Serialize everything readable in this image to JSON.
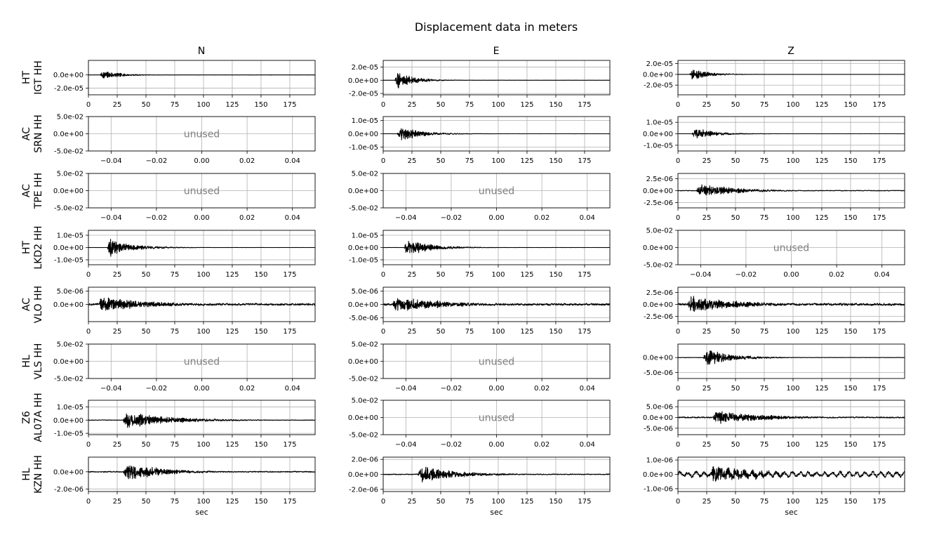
{
  "figure": {
    "title": "Displacement data in meters",
    "columns": [
      "N",
      "E",
      "Z"
    ],
    "xlabel": "sec"
  },
  "chart_data": {
    "type": "line",
    "title": "Displacement data in meters",
    "xlabel": "sec",
    "unused_label": "unused",
    "grid": true,
    "time_ticks": [
      "0",
      "25",
      "50",
      "75",
      "100",
      "125",
      "150",
      "175"
    ],
    "time_xlim": [
      0,
      197
    ],
    "unused_xticks": [
      "−0.04",
      "−0.02",
      "0.00",
      "0.02",
      "0.04"
    ],
    "unused_yticks": [
      "5.0e-02",
      "0.0e+00",
      "-5.0e-02"
    ],
    "rows": [
      {
        "network": "HT",
        "station": "IGT HH",
        "panels": [
          {
            "component": "N",
            "used": true,
            "onset": 10,
            "peak": 1.6e-05,
            "decay": 14,
            "ylim": [
              -3e-05,
              2.2e-05
            ],
            "yticks": [
              {
                "v": 0,
                "label": "0.0e+00"
              },
              {
                "v": -2e-05,
                "label": "-2.0e-05"
              }
            ],
            "noise": 0.004
          },
          {
            "component": "E",
            "used": true,
            "onset": 10,
            "peak": 3e-05,
            "decay": 14,
            "ylim": [
              -2.2e-05,
              3e-05
            ],
            "yticks": [
              {
                "v": 2e-05,
                "label": "2.0e-05"
              },
              {
                "v": 0,
                "label": "0.0e+00"
              },
              {
                "v": -2e-05,
                "label": "-2.0e-05"
              }
            ],
            "noise": 0.004
          },
          {
            "component": "Z",
            "used": true,
            "onset": 10,
            "peak": 2.5e-05,
            "decay": 14,
            "ylim": [
              -3.8e-05,
              2.6e-05
            ],
            "yticks": [
              {
                "v": 2e-05,
                "label": "2.0e-05"
              },
              {
                "v": 0,
                "label": "0.0e+00"
              },
              {
                "v": -2e-05,
                "label": "-2.0e-05"
              }
            ],
            "noise": 0.004
          }
        ]
      },
      {
        "network": "AC",
        "station": "SRN HH",
        "panels": [
          {
            "component": "N",
            "used": false
          },
          {
            "component": "E",
            "used": true,
            "onset": 12,
            "peak": 1.2e-05,
            "decay": 18,
            "ylim": [
              -1.3e-05,
              1.3e-05
            ],
            "yticks": [
              {
                "v": 1e-05,
                "label": "1.0e-05"
              },
              {
                "v": 0,
                "label": "0.0e+00"
              },
              {
                "v": -1e-05,
                "label": "-1.0e-05"
              }
            ],
            "noise": 0.006
          },
          {
            "component": "Z",
            "used": true,
            "onset": 12,
            "peak": 1.2e-05,
            "decay": 16,
            "ylim": [
              -1.5e-05,
              1.5e-05
            ],
            "yticks": [
              {
                "v": 1e-05,
                "label": "1.0e-05"
              },
              {
                "v": 0,
                "label": "0.0e+00"
              },
              {
                "v": -1e-05,
                "label": "-1.0e-05"
              }
            ],
            "noise": 0.006
          }
        ]
      },
      {
        "network": "AC",
        "station": "TPE HH",
        "panels": [
          {
            "component": "N",
            "used": false
          },
          {
            "component": "E",
            "used": false
          },
          {
            "component": "Z",
            "used": true,
            "onset": 16,
            "peak": 3.2e-06,
            "decay": 28,
            "ylim": [
              -3.6e-06,
              3.6e-06
            ],
            "yticks": [
              {
                "v": 2.5e-06,
                "label": "2.5e-06"
              },
              {
                "v": 0,
                "label": "0.0e+00"
              },
              {
                "v": -2.5e-06,
                "label": "-2.5e-06"
              }
            ],
            "noise": 0.04
          }
        ]
      },
      {
        "network": "HT",
        "station": "LKD2 HH",
        "panels": [
          {
            "component": "N",
            "used": true,
            "onset": 16,
            "peak": 1.4e-05,
            "decay": 20,
            "ylim": [
              -1.4e-05,
              1.4e-05
            ],
            "yticks": [
              {
                "v": 1e-05,
                "label": "1.0e-05"
              },
              {
                "v": 0,
                "label": "0.0e+00"
              },
              {
                "v": -1e-05,
                "label": "-1.0e-05"
              }
            ],
            "noise": 0.008
          },
          {
            "component": "E",
            "used": true,
            "onset": 18,
            "peak": 1.4e-05,
            "decay": 20,
            "ylim": [
              -1.4e-05,
              1.4e-05
            ],
            "yticks": [
              {
                "v": 1e-05,
                "label": "1.0e-05"
              },
              {
                "v": 0,
                "label": "0.0e+00"
              },
              {
                "v": -1e-05,
                "label": "-1.0e-05"
              }
            ],
            "noise": 0.008
          },
          {
            "component": "Z",
            "used": false
          }
        ]
      },
      {
        "network": "AC",
        "station": "VLO HH",
        "panels": [
          {
            "component": "N",
            "used": true,
            "onset": 8,
            "peak": 6e-06,
            "decay": 40,
            "ylim": [
              -6.5e-06,
              6.5e-06
            ],
            "yticks": [
              {
                "v": 5e-06,
                "label": "5.0e-06"
              },
              {
                "v": 0,
                "label": "0.0e+00"
              }
            ],
            "noise": 0.12
          },
          {
            "component": "E",
            "used": true,
            "onset": 8,
            "peak": 6e-06,
            "decay": 40,
            "ylim": [
              -6.5e-06,
              6.5e-06
            ],
            "yticks": [
              {
                "v": 5e-06,
                "label": "5.0e-06"
              },
              {
                "v": 0,
                "label": "0.0e+00"
              },
              {
                "v": -5e-06,
                "label": "-5.0e-06"
              }
            ],
            "noise": 0.12
          },
          {
            "component": "Z",
            "used": true,
            "onset": 8,
            "peak": 3.6e-06,
            "decay": 40,
            "ylim": [
              -3.6e-06,
              3.6e-06
            ],
            "yticks": [
              {
                "v": 2.5e-06,
                "label": "2.5e-06"
              },
              {
                "v": 0,
                "label": "0.0e+00"
              },
              {
                "v": -2.5e-06,
                "label": "-2.5e-06"
              }
            ],
            "noise": 0.12
          }
        ]
      },
      {
        "network": "HL",
        "station": "VLS HH",
        "panels": [
          {
            "component": "N",
            "used": false
          },
          {
            "component": "E",
            "used": false
          },
          {
            "component": "Z",
            "used": true,
            "onset": 22,
            "peak": 6e-06,
            "decay": 22,
            "ylim": [
              -7e-06,
              4.5e-06
            ],
            "yticks": [
              {
                "v": 0,
                "label": "0.0e+00"
              },
              {
                "v": -5e-06,
                "label": "-5.0e-06"
              }
            ],
            "noise": 0.02
          }
        ]
      },
      {
        "network": "Z6",
        "station": "AL07A HH",
        "panels": [
          {
            "component": "N",
            "used": true,
            "onset": 30,
            "peak": 1.2e-05,
            "decay": 38,
            "ylim": [
              -1.1e-05,
              1.5e-05
            ],
            "yticks": [
              {
                "v": 1e-05,
                "label": "1.0e-05"
              },
              {
                "v": 0,
                "label": "0.0e+00"
              },
              {
                "v": -1e-05,
                "label": "-1.0e-05"
              }
            ],
            "noise": 0.03
          },
          {
            "component": "E",
            "used": false
          },
          {
            "component": "Z",
            "used": true,
            "onset": 30,
            "peak": 6.5e-06,
            "decay": 40,
            "ylim": [
              -8e-06,
              8e-06
            ],
            "yticks": [
              {
                "v": 5e-06,
                "label": "5.0e-06"
              },
              {
                "v": 0,
                "label": "0.0e+00"
              },
              {
                "v": -5e-06,
                "label": "-5.0e-06"
              }
            ],
            "noise": 0.08
          }
        ]
      },
      {
        "network": "HL",
        "station": "KZN HH",
        "panels": [
          {
            "component": "N",
            "used": true,
            "onset": 30,
            "peak": 2.2e-06,
            "decay": 30,
            "ylim": [
              -2.3e-06,
              1.7e-06
            ],
            "yticks": [
              {
                "v": 0,
                "label": "0.0e+00"
              },
              {
                "v": -2e-06,
                "label": "-2.0e-06"
              }
            ],
            "noise": 0.05
          },
          {
            "component": "E",
            "used": true,
            "onset": 30,
            "peak": 2.2e-06,
            "decay": 32,
            "ylim": [
              -2.3e-06,
              2.3e-06
            ],
            "yticks": [
              {
                "v": 2e-06,
                "label": "2.0e-06"
              },
              {
                "v": 0,
                "label": "0.0e+00"
              },
              {
                "v": -2e-06,
                "label": "-2.0e-06"
              }
            ],
            "noise": 0.05
          },
          {
            "component": "Z",
            "used": true,
            "onset": 28,
            "peak": 1.1e-06,
            "decay": 40,
            "ylim": [
              -1.2e-06,
              1.2e-06
            ],
            "yticks": [
              {
                "v": 1e-06,
                "label": "1.0e-06"
              },
              {
                "v": 0,
                "label": "0.0e+00"
              },
              {
                "v": -1e-06,
                "label": "-1.0e-06"
              }
            ],
            "noise": 0.18,
            "swell": true
          }
        ]
      }
    ]
  }
}
